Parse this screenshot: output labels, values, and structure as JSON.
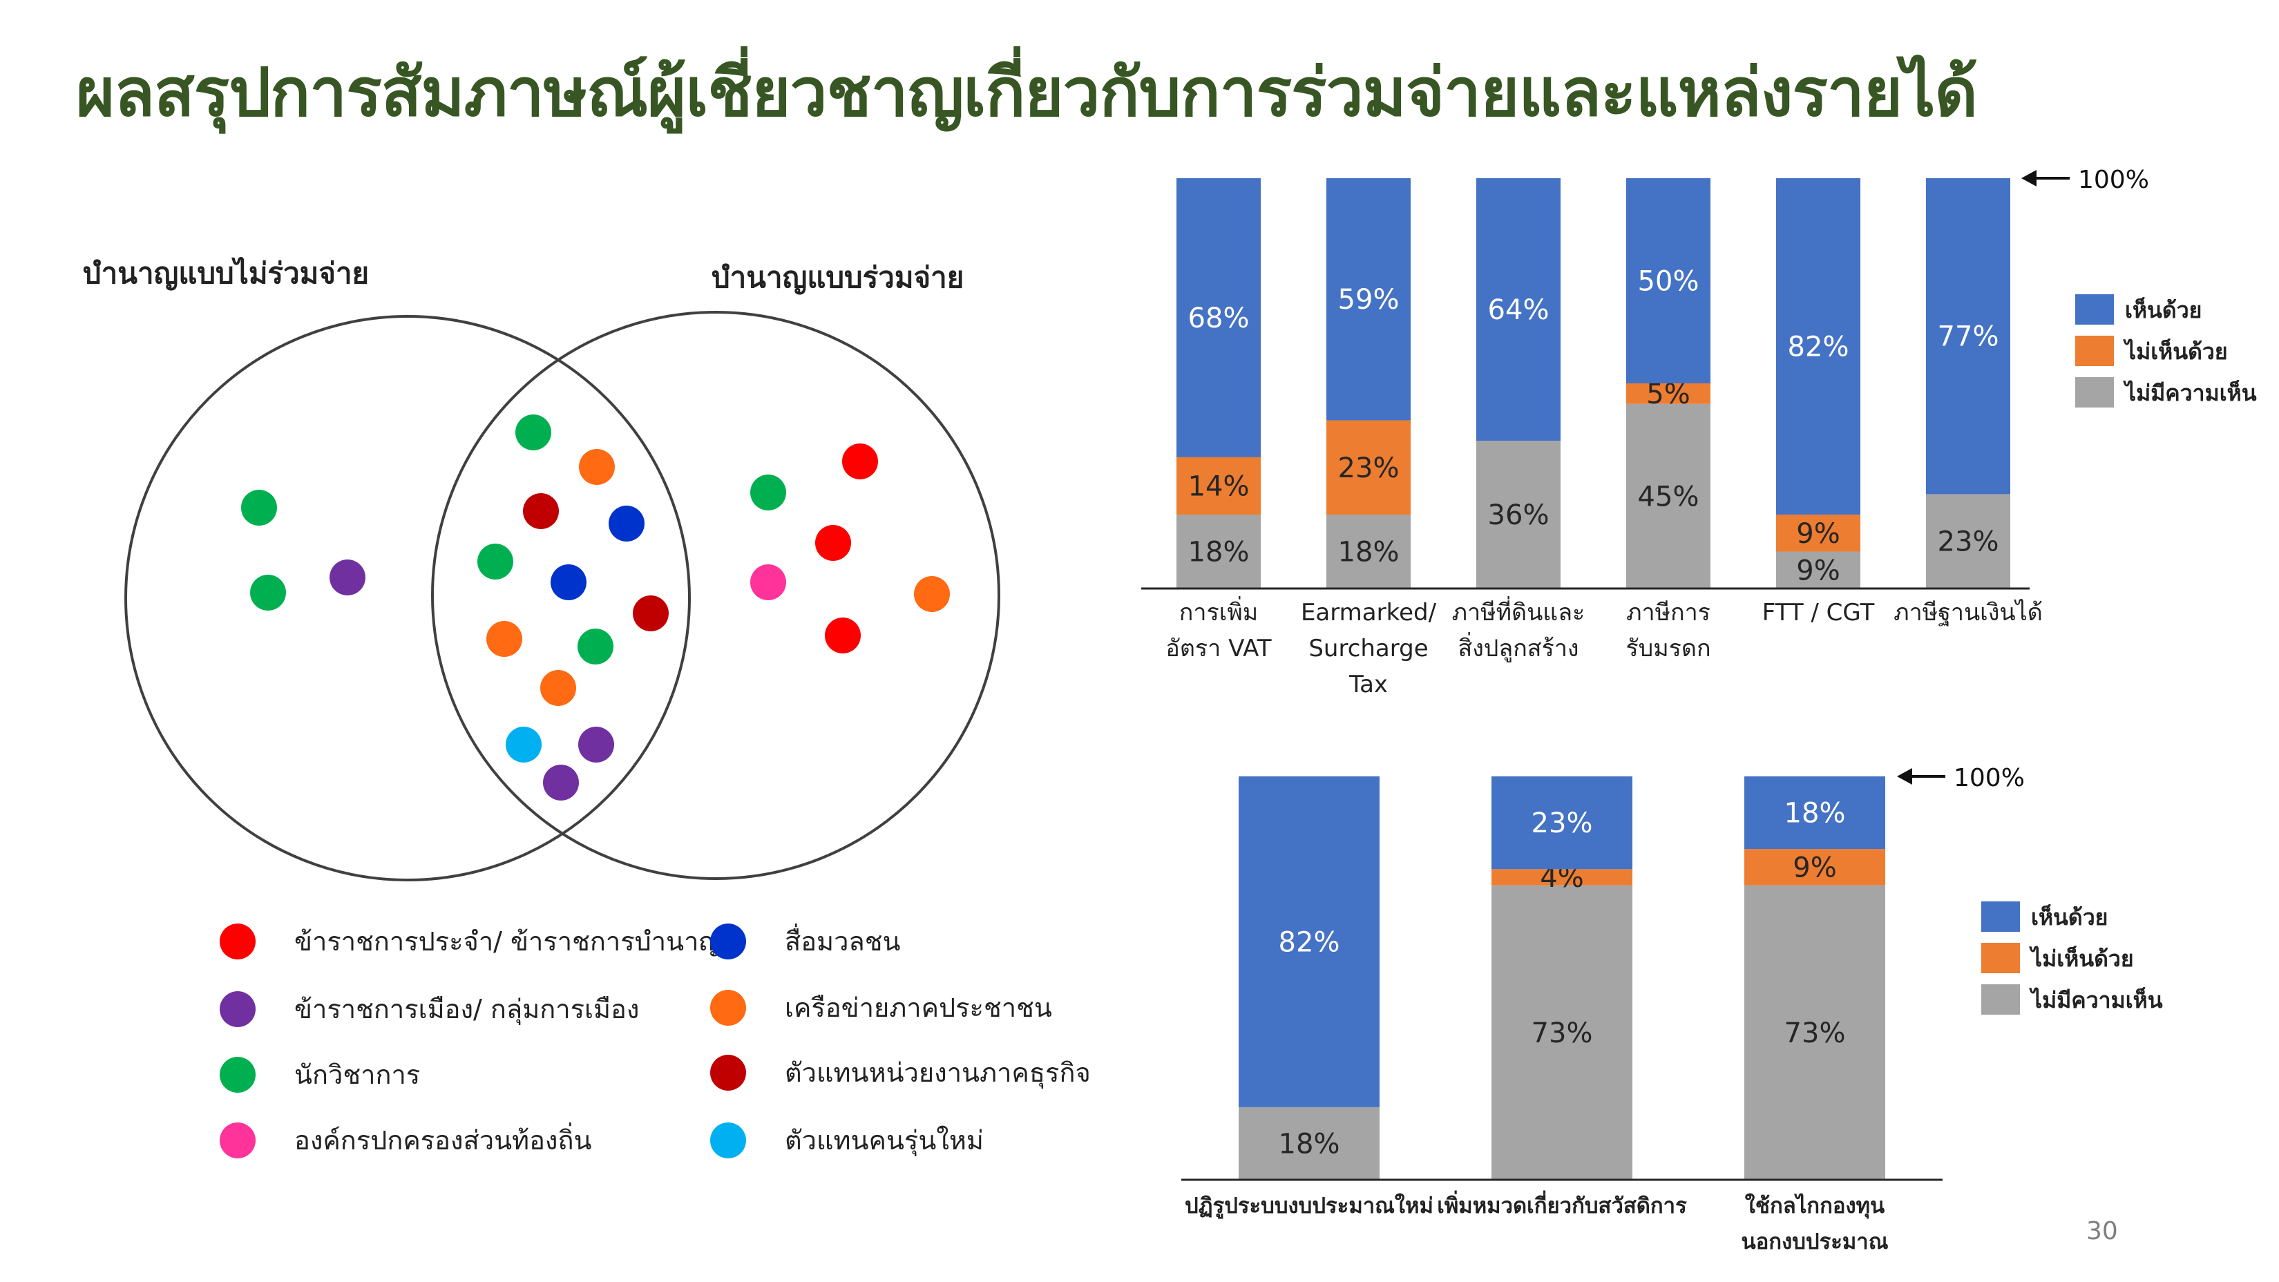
{
  "title": "ผลสรุปการสัมภาษณ์ผู้เชี่ยวชาญเกี่ยวกับการร่วมจ่ายและแหล่งรายได้",
  "page_number": "30",
  "venn": {
    "left_label": "บำนาญแบบไม่ร่วมจ่าย",
    "right_label": "บำนาญแบบร่วมจ่าย"
  },
  "groups": [
    {
      "key": "red",
      "color": "#ff0000",
      "label": "ข้าราชการประจำ/ ข้าราชการบำนาญ"
    },
    {
      "key": "navy",
      "color": "#0033cc",
      "label": "สื่อมวลชน"
    },
    {
      "key": "purple",
      "color": "#7030a0",
      "label": "ข้าราชการเมือง/ กลุ่มการเมือง"
    },
    {
      "key": "orange",
      "color": "#ff6a13",
      "label": "เครือข่ายภาคประชาชน"
    },
    {
      "key": "green",
      "color": "#00b050",
      "label": "นักวิชาการ"
    },
    {
      "key": "darkred",
      "color": "#c00000",
      "label": "ตัวแทนหน่วยงานภาคธุรกิจ"
    },
    {
      "key": "pink",
      "color": "#ff3399",
      "label": "องค์กรปกครองส่วนท้องถิ่น"
    },
    {
      "key": "cyan",
      "color": "#00b0f0",
      "label": "ตัวแทนคนรุ่นใหม่"
    }
  ],
  "legend_labels": [
    "เห็นด้วย",
    "ไม่เห็นด้วย",
    "ไม่มีความเห็น"
  ],
  "colors": {
    "agree": "#4472c4",
    "disagree": "#ed7d31",
    "none": "#a5a5a5"
  },
  "marker_100": "100%",
  "chart_data": [
    {
      "type": "bar",
      "stacked": true,
      "ylim": [
        0,
        100
      ],
      "categories": [
        [
          "การเพิ่ม",
          "อัตรา VAT"
        ],
        [
          "Earmarked/",
          "Surcharge",
          "Tax"
        ],
        [
          "ภาษีที่ดินและ",
          "สิ่งปลูกสร้าง"
        ],
        [
          "ภาษีการ",
          "รับมรดก"
        ],
        [
          "FTT / CGT"
        ],
        [
          "ภาษีฐานเงินได้"
        ]
      ],
      "series": [
        {
          "name": "ไม่มีความเห็น",
          "values": [
            18,
            18,
            36,
            45,
            9,
            23
          ]
        },
        {
          "name": "ไม่เห็นด้วย",
          "values": [
            14,
            23,
            0,
            5,
            9,
            0
          ]
        },
        {
          "name": "เห็นด้วย",
          "values": [
            68,
            59,
            64,
            50,
            82,
            77
          ]
        }
      ]
    },
    {
      "type": "bar",
      "stacked": true,
      "ylim": [
        0,
        100
      ],
      "categories": [
        [
          "ปฏิรูประบบงบประมาณใหม่"
        ],
        [
          "เพิ่มหมวดเกี่ยวกับสวัสดิการ"
        ],
        [
          "ใช้กลไกกองทุน",
          "นอกงบประมาณ"
        ]
      ],
      "series": [
        {
          "name": "ไม่มีความเห็น",
          "values": [
            18,
            73,
            73
          ]
        },
        {
          "name": "ไม่เห็นด้วย",
          "values": [
            0,
            4,
            9
          ]
        },
        {
          "name": "เห็นด้วย",
          "values": [
            82,
            23,
            18
          ]
        }
      ]
    }
  ]
}
